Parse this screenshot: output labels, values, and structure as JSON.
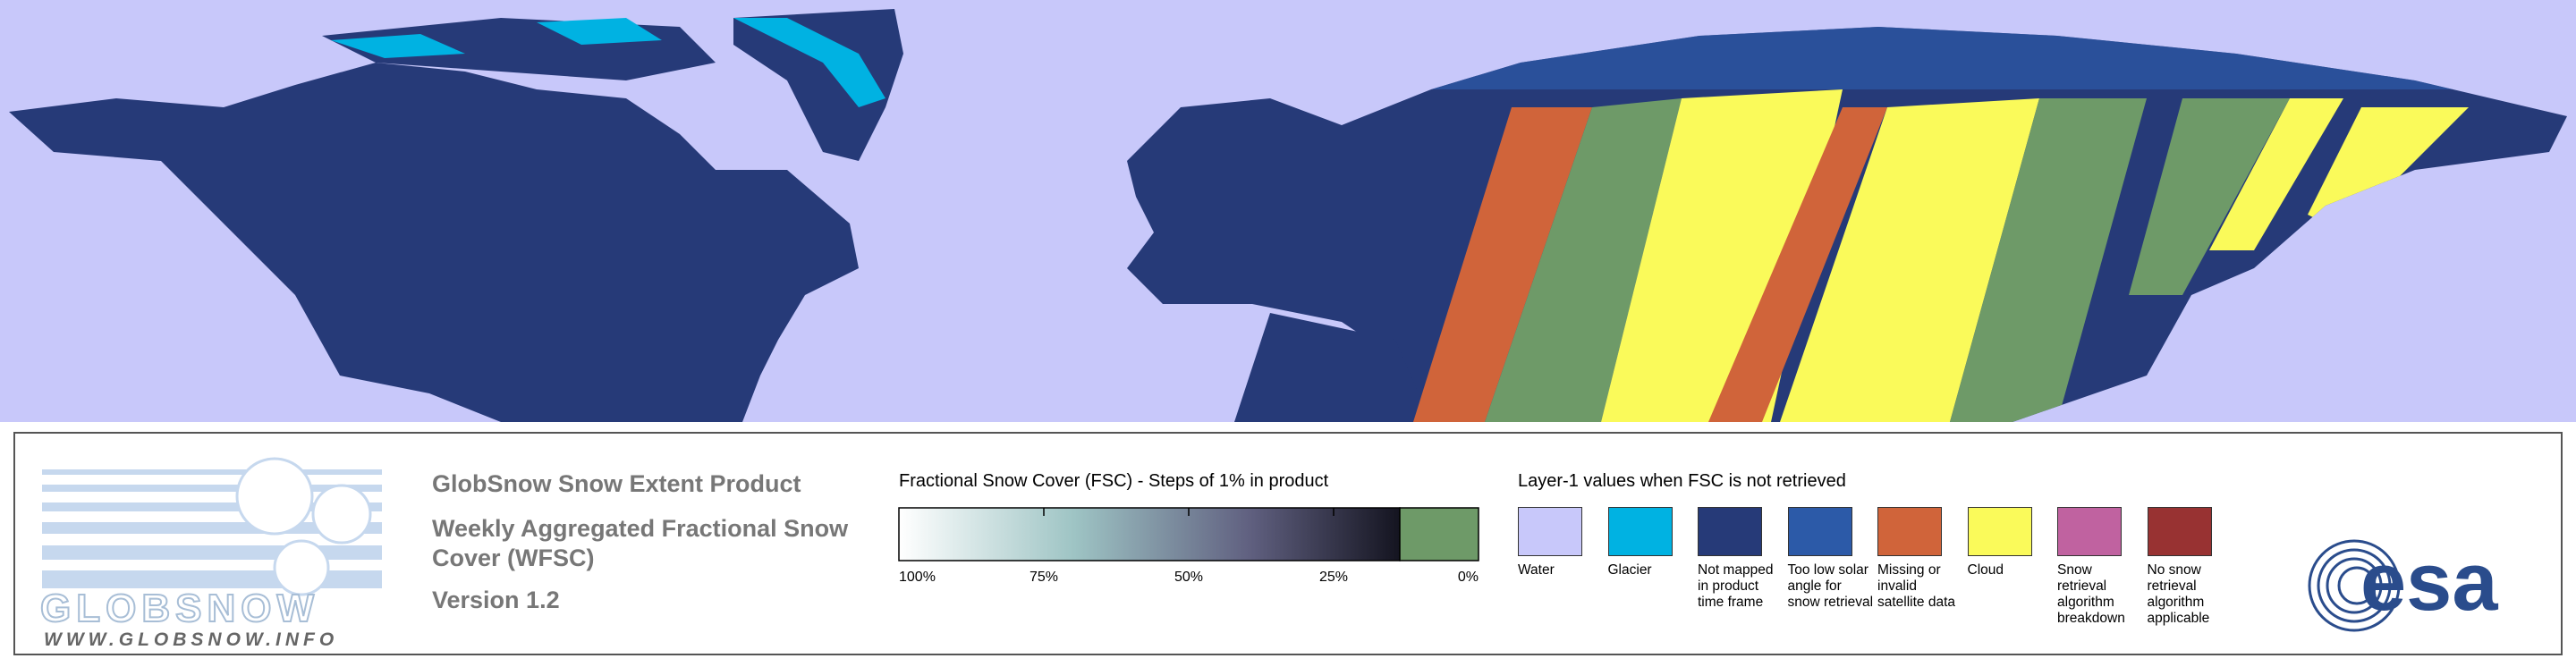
{
  "logo": {
    "name": "GLOBSNOW",
    "url": "WWW.GLOBSNOW.INFO"
  },
  "product": {
    "title": "GlobSnow Snow Extent Product",
    "subtitle": "Weekly Aggregated Fractional Snow Cover (WFSC)",
    "version": "Version 1.2"
  },
  "fsc_legend": {
    "title": "Fractional Snow Cover (FSC) - Steps of 1% in product",
    "ticks": [
      {
        "value": 100,
        "label": "100%"
      },
      {
        "value": 75,
        "label": "75%"
      },
      {
        "value": 50,
        "label": "50%"
      },
      {
        "value": 25,
        "label": "25%"
      },
      {
        "value": 0,
        "label": "0%"
      }
    ]
  },
  "layer1_legend": {
    "title": "Layer-1 values when FSC is not retrieved",
    "items": [
      {
        "label": "Water",
        "color": "#c8c8fa"
      },
      {
        "label": "Glacier",
        "color": "#00b2e2"
      },
      {
        "label": "Not mapped in product time frame",
        "color": "#263a78"
      },
      {
        "label": "Too low solar angle for snow retrieval",
        "color": "#2c5aa8"
      },
      {
        "label": "Missing or invalid satellite data",
        "color": "#d0643a"
      },
      {
        "label": "Cloud",
        "color": "#fafa5a"
      },
      {
        "label": "Snow retrieval algorithm breakdown",
        "color": "#c062a0"
      },
      {
        "label": "No snow retrieval algorithm applicable",
        "color": "#983232"
      }
    ]
  },
  "agency": {
    "name": "esa"
  }
}
